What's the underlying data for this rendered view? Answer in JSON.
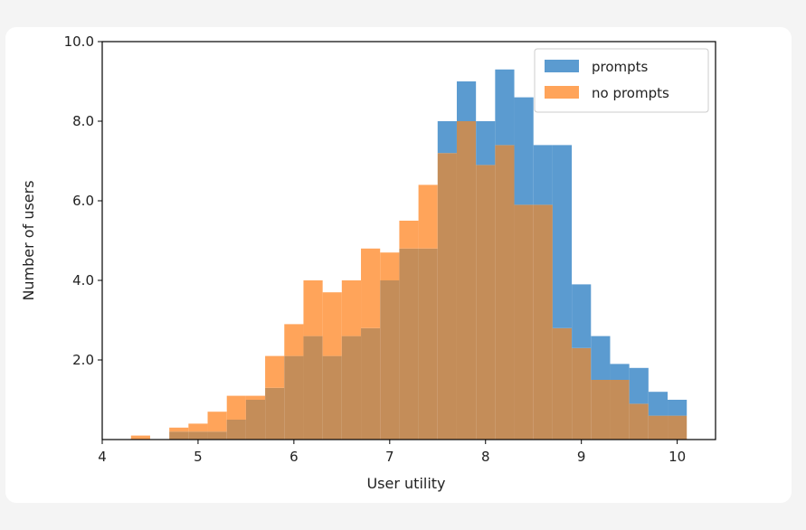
{
  "colors": {
    "prompts": "#5b9bd0",
    "no_prompts": "#ffa45a",
    "overlap": "#c48d59"
  },
  "chart_data": {
    "type": "bar",
    "subtype": "overlapping-histogram",
    "xlabel": "User utility",
    "ylabel": "Number of users",
    "xlim": [
      4,
      10.4
    ],
    "ylim": [
      0,
      10
    ],
    "x_ticks": [
      "4",
      "5",
      "6",
      "7",
      "8",
      "9",
      "10"
    ],
    "y_ticks": [
      "2.0",
      "4.0",
      "6.0",
      "8.0",
      "10.0"
    ],
    "bin_width": 0.2,
    "bin_starts": [
      4.3,
      4.5,
      4.7,
      4.9,
      5.1,
      5.3,
      5.5,
      5.7,
      5.9,
      6.1,
      6.3,
      6.5,
      6.7,
      6.9,
      7.1,
      7.3,
      7.5,
      7.7,
      7.9,
      8.1,
      8.3,
      8.5,
      8.7,
      8.9,
      9.1,
      9.3,
      9.5,
      9.7,
      9.9
    ],
    "series": [
      {
        "name": "prompts",
        "values": [
          0,
          0,
          0.2,
          0.2,
          0.2,
          0.5,
          1.0,
          1.3,
          2.1,
          2.6,
          2.1,
          2.6,
          2.8,
          4.0,
          4.8,
          4.8,
          8.0,
          9.0,
          8.0,
          9.3,
          8.6,
          7.4,
          7.4,
          3.9,
          2.6,
          1.9,
          1.8,
          1.2,
          1.0
        ]
      },
      {
        "name": "no prompts",
        "values": [
          0.1,
          0,
          0.3,
          0.4,
          0.7,
          1.1,
          1.1,
          2.1,
          2.9,
          4.0,
          3.7,
          4.0,
          4.8,
          4.7,
          5.5,
          6.4,
          7.2,
          8.0,
          6.9,
          7.4,
          5.9,
          5.9,
          2.8,
          2.3,
          1.5,
          1.5,
          0.9,
          0.6,
          0.6
        ]
      }
    ],
    "legend": {
      "position": "top-right",
      "entries": [
        "prompts",
        "no prompts"
      ]
    },
    "grid": false
  }
}
